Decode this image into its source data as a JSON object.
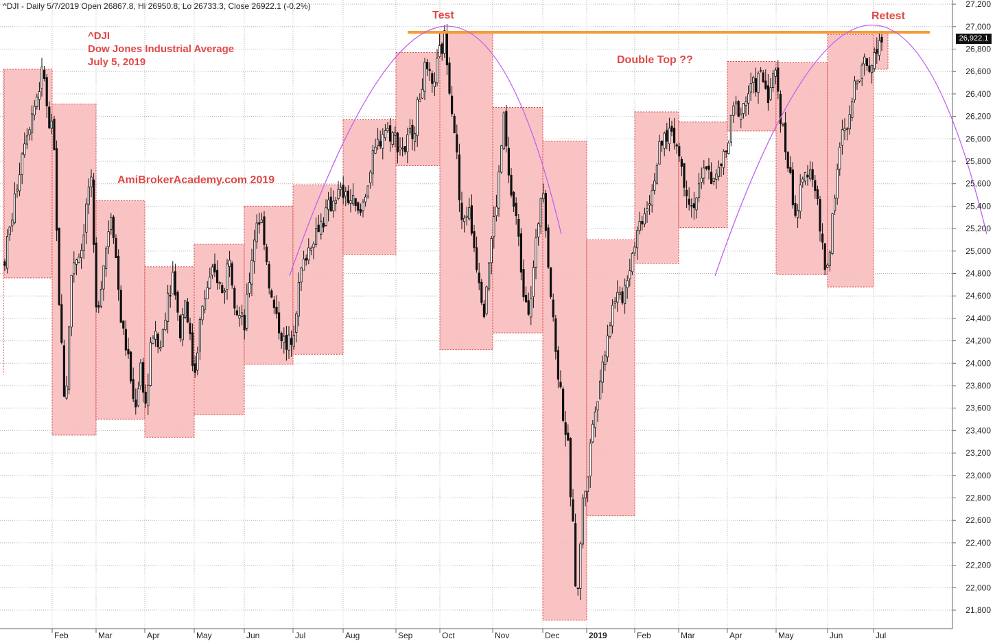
{
  "header": {
    "text": "^DJI - Daily 5/7/2019 Open 26867.8, Hi 26950.8, Lo 26733.3, Close 26922.1 (-0.2%)"
  },
  "annotations": {
    "symbol": "^DJI",
    "name": "Dow Jones Industrial Average",
    "date": "July 5, 2019",
    "watermark": "AmiBrokerAcademy.com  2019",
    "test": "Test",
    "retest": "Retest",
    "double_top": "Double Top ??"
  },
  "last_value_label": "26,922.1",
  "colors": {
    "box_fill": "#f8bcbc",
    "box_border": "#d94040",
    "candle": "#111111",
    "resistance": "#f39c38",
    "arc": "#c060f0",
    "annotation_text": "#e04848",
    "grid": "#b8b8b8"
  },
  "chart_data": {
    "type": "candlestick",
    "title": "^DJI - Daily 5/7/2019 Open 26867.8, Hi 26950.8, Lo 26733.3, Close 26922.1 (-0.2%)",
    "ylim": [
      21600,
      27200
    ],
    "y_ticks": [
      21800,
      22000,
      22200,
      22400,
      22600,
      22800,
      23000,
      23200,
      23400,
      23600,
      23800,
      24000,
      24200,
      24400,
      24600,
      24800,
      25000,
      25200,
      25400,
      25600,
      25800,
      26000,
      26200,
      26400,
      26600,
      26800,
      27000,
      27200
    ],
    "y_tick_labels": [
      "21,800",
      "22,000",
      "22,200",
      "22,400",
      "22,600",
      "22,800",
      "23,000",
      "23,200",
      "23,400",
      "23,600",
      "23,800",
      "24,000",
      "24,200",
      "24,400",
      "24,600",
      "24,800",
      "25,000",
      "25,200",
      "25,400",
      "25,600",
      "25,800",
      "26,000",
      "26,200",
      "26,400",
      "26,600",
      "26,800",
      "27,000",
      "27,200"
    ],
    "x_labels": [
      {
        "label": "Feb",
        "t": 76,
        "bold": false
      },
      {
        "label": "Mar",
        "t": 140,
        "bold": false
      },
      {
        "label": "Apr",
        "t": 211,
        "bold": false
      },
      {
        "label": "May",
        "t": 283,
        "bold": false
      },
      {
        "label": "Jun",
        "t": 356,
        "bold": false
      },
      {
        "label": "Jul",
        "t": 427,
        "bold": false
      },
      {
        "label": "Aug",
        "t": 500,
        "bold": false
      },
      {
        "label": "Sep",
        "t": 577,
        "bold": false
      },
      {
        "label": "Oct",
        "t": 641,
        "bold": false
      },
      {
        "label": "Nov",
        "t": 718,
        "bold": false
      },
      {
        "label": "Dec",
        "t": 791,
        "bold": false
      },
      {
        "label": "2019",
        "t": 855,
        "bold": true
      },
      {
        "label": "Feb",
        "t": 925,
        "bold": false
      },
      {
        "label": "Mar",
        "t": 989,
        "bold": false
      },
      {
        "label": "Apr",
        "t": 1060,
        "bold": false
      },
      {
        "label": "May",
        "t": 1131,
        "bold": false
      },
      {
        "label": "Jun",
        "t": 1206,
        "bold": false
      },
      {
        "label": "Jul",
        "t": 1273,
        "bold": false
      }
    ],
    "monthly_ranges": [
      {
        "month": "Jan 2018",
        "t0": 6,
        "t1": 76,
        "high": 26620,
        "low": 24760
      },
      {
        "month": "Feb 2018",
        "t0": 76,
        "t1": 140,
        "high": 26310,
        "low": 23360
      },
      {
        "month": "Mar 2018",
        "t0": 140,
        "t1": 211,
        "high": 25450,
        "low": 23500
      },
      {
        "month": "Apr 2018",
        "t0": 211,
        "t1": 283,
        "high": 24860,
        "low": 23340
      },
      {
        "month": "May 2018",
        "t0": 283,
        "t1": 356,
        "high": 25060,
        "low": 23540
      },
      {
        "month": "Jun 2018",
        "t0": 356,
        "t1": 427,
        "high": 25400,
        "low": 23990
      },
      {
        "month": "Jul 2018",
        "t0": 427,
        "t1": 500,
        "high": 25590,
        "low": 24080
      },
      {
        "month": "Aug 2018",
        "t0": 500,
        "t1": 577,
        "high": 26170,
        "low": 24970
      },
      {
        "month": "Sep 2018",
        "t0": 577,
        "t1": 641,
        "high": 26770,
        "low": 25760
      },
      {
        "month": "Oct 2018",
        "t0": 641,
        "t1": 718,
        "high": 26950,
        "low": 24120
      },
      {
        "month": "Nov 2018",
        "t0": 718,
        "t1": 791,
        "high": 26280,
        "low": 24270
      },
      {
        "month": "Dec 2018",
        "t0": 791,
        "t1": 855,
        "high": 25980,
        "low": 21710
      },
      {
        "month": "Jan 2019",
        "t0": 855,
        "t1": 925,
        "high": 25100,
        "low": 22640
      },
      {
        "month": "Feb 2019",
        "t0": 925,
        "t1": 989,
        "high": 26240,
        "low": 24890
      },
      {
        "month": "Mar 2019",
        "t0": 989,
        "t1": 1060,
        "high": 26150,
        "low": 25210
      },
      {
        "month": "Apr 2019",
        "t0": 1060,
        "t1": 1131,
        "high": 26690,
        "low": 26070
      },
      {
        "month": "May 2019",
        "t0": 1131,
        "t1": 1206,
        "high": 26680,
        "low": 24790
      },
      {
        "month": "Jun 2019",
        "t0": 1206,
        "t1": 1273,
        "high": 26930,
        "low": 24680
      },
      {
        "month": "Jul 2019",
        "t0": 1273,
        "t1": 1294,
        "high": 26950,
        "low": 26620
      }
    ],
    "price_path": [
      [
        6,
        24900
      ],
      [
        20,
        25400
      ],
      [
        35,
        26000
      ],
      [
        50,
        26300
      ],
      [
        64,
        26620
      ],
      [
        70,
        26100
      ],
      [
        78,
        26050
      ],
      [
        85,
        24700
      ],
      [
        95,
        23560
      ],
      [
        105,
        24900
      ],
      [
        118,
        25000
      ],
      [
        132,
        25700
      ],
      [
        140,
        24450
      ],
      [
        150,
        24850
      ],
      [
        163,
        25400
      ],
      [
        176,
        24400
      ],
      [
        188,
        24000
      ],
      [
        196,
        23580
      ],
      [
        205,
        23980
      ],
      [
        213,
        23600
      ],
      [
        222,
        24300
      ],
      [
        233,
        24100
      ],
      [
        245,
        24650
      ],
      [
        253,
        24820
      ],
      [
        262,
        24250
      ],
      [
        270,
        24600
      ],
      [
        283,
        23880
      ],
      [
        292,
        24400
      ],
      [
        303,
        24700
      ],
      [
        315,
        24800
      ],
      [
        325,
        24600
      ],
      [
        334,
        25000
      ],
      [
        344,
        24500
      ],
      [
        356,
        24300
      ],
      [
        366,
        24900
      ],
      [
        375,
        25320
      ],
      [
        384,
        25200
      ],
      [
        394,
        24600
      ],
      [
        408,
        24300
      ],
      [
        418,
        24100
      ],
      [
        428,
        24350
      ],
      [
        438,
        24800
      ],
      [
        448,
        25000
      ],
      [
        462,
        25200
      ],
      [
        476,
        25330
      ],
      [
        488,
        25500
      ],
      [
        500,
        25500
      ],
      [
        512,
        25450
      ],
      [
        524,
        25300
      ],
      [
        535,
        25600
      ],
      [
        548,
        25900
      ],
      [
        560,
        26100
      ],
      [
        570,
        26050
      ],
      [
        577,
        26000
      ],
      [
        590,
        25900
      ],
      [
        605,
        26150
      ],
      [
        618,
        26600
      ],
      [
        630,
        26450
      ],
      [
        641,
        26750
      ],
      [
        648,
        26900
      ],
      [
        656,
        26450
      ],
      [
        664,
        26000
      ],
      [
        672,
        25200
      ],
      [
        682,
        25400
      ],
      [
        695,
        24900
      ],
      [
        705,
        24500
      ],
      [
        716,
        25100
      ],
      [
        725,
        25500
      ],
      [
        734,
        26200
      ],
      [
        742,
        25600
      ],
      [
        752,
        25300
      ],
      [
        762,
        24700
      ],
      [
        772,
        24500
      ],
      [
        782,
        25100
      ],
      [
        791,
        25700
      ],
      [
        800,
        24800
      ],
      [
        810,
        24100
      ],
      [
        820,
        23600
      ],
      [
        828,
        23200
      ],
      [
        836,
        22400
      ],
      [
        841,
        21800
      ],
      [
        848,
        22700
      ],
      [
        856,
        23000
      ],
      [
        866,
        23600
      ],
      [
        876,
        23900
      ],
      [
        886,
        24300
      ],
      [
        896,
        24600
      ],
      [
        905,
        24550
      ],
      [
        915,
        24800
      ],
      [
        925,
        25100
      ],
      [
        935,
        25300
      ],
      [
        948,
        25500
      ],
      [
        958,
        25800
      ],
      [
        968,
        26000
      ],
      [
        978,
        26100
      ],
      [
        988,
        25900
      ],
      [
        998,
        25600
      ],
      [
        1008,
        25400
      ],
      [
        1020,
        25550
      ],
      [
        1030,
        25800
      ],
      [
        1040,
        25600
      ],
      [
        1050,
        25750
      ],
      [
        1060,
        25900
      ],
      [
        1070,
        26300
      ],
      [
        1080,
        26250
      ],
      [
        1090,
        26400
      ],
      [
        1100,
        26500
      ],
      [
        1110,
        26550
      ],
      [
        1120,
        26400
      ],
      [
        1131,
        26600
      ],
      [
        1140,
        26100
      ],
      [
        1150,
        25700
      ],
      [
        1160,
        25300
      ],
      [
        1170,
        25600
      ],
      [
        1180,
        25800
      ],
      [
        1190,
        25500
      ],
      [
        1200,
        24900
      ],
      [
        1206,
        24850
      ],
      [
        1216,
        25500
      ],
      [
        1226,
        26000
      ],
      [
        1236,
        26100
      ],
      [
        1246,
        26500
      ],
      [
        1256,
        26700
      ],
      [
        1266,
        26650
      ],
      [
        1273,
        26700
      ],
      [
        1282,
        26900
      ],
      [
        1288,
        26922
      ]
    ],
    "resistance_level": 26950,
    "resistance_range": {
      "t0": 594,
      "t1": 1355
    },
    "arcs": [
      {
        "start": [
          422,
          24780
        ],
        "peak": [
          643,
          27000
        ],
        "end": [
          818,
          25150
        ]
      },
      {
        "start": [
          1042,
          24780
        ],
        "peak": [
          1262,
          27010
        ],
        "end": [
          1438,
          25150
        ]
      }
    ],
    "last_value": 26922.1
  }
}
